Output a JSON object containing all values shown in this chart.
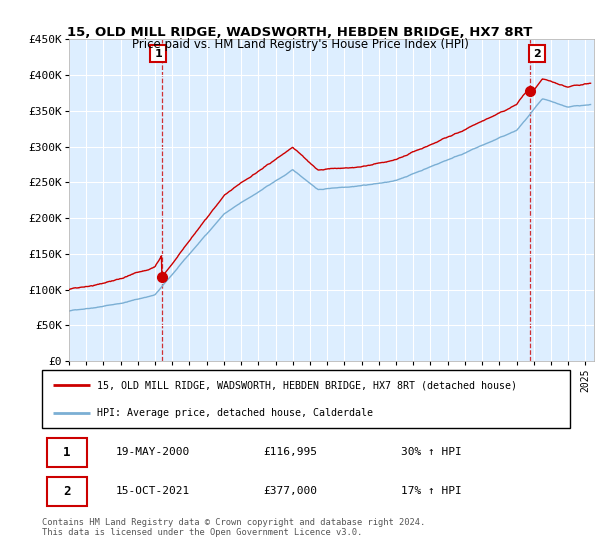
{
  "title": "15, OLD MILL RIDGE, WADSWORTH, HEBDEN BRIDGE, HX7 8RT",
  "subtitle": "Price paid vs. HM Land Registry's House Price Index (HPI)",
  "ylabel_ticks": [
    "£0",
    "£50K",
    "£100K",
    "£150K",
    "£200K",
    "£250K",
    "£300K",
    "£350K",
    "£400K",
    "£450K"
  ],
  "ylim": [
    0,
    450000
  ],
  "ytick_vals": [
    0,
    50000,
    100000,
    150000,
    200000,
    250000,
    300000,
    350000,
    400000,
    450000
  ],
  "xlim_start": 1995.0,
  "xlim_end": 2025.5,
  "red_color": "#cc0000",
  "blue_color": "#7bafd4",
  "bg_color": "#ddeeff",
  "marker1_date": "19-MAY-2000",
  "marker1_price": 116995,
  "marker1_x": 2000.38,
  "marker2_date": "15-OCT-2021",
  "marker2_price": 377000,
  "marker2_x": 2021.79,
  "legend_line1": "15, OLD MILL RIDGE, WADSWORTH, HEBDEN BRIDGE, HX7 8RT (detached house)",
  "legend_line2": "HPI: Average price, detached house, Calderdale",
  "footer": "Contains HM Land Registry data © Crown copyright and database right 2024.\nThis data is licensed under the Open Government Licence v3.0.",
  "table_row1": [
    "1",
    "19-MAY-2000",
    "£116,995",
    "30% ↑ HPI"
  ],
  "table_row2": [
    "2",
    "15-OCT-2021",
    "£377,000",
    "17% ↑ HPI"
  ]
}
